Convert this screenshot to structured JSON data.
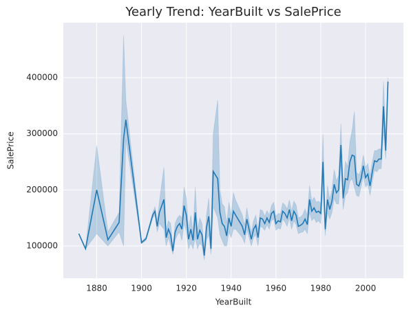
{
  "chart_data": {
    "type": "line",
    "title": "Yearly Trend: YearBuilt vs SalePrice",
    "x_label": "YearBuilt",
    "y_label": "SalePrice",
    "x": [
      1872,
      1875,
      1880,
      1885,
      1890,
      1892,
      1893,
      1900,
      1902,
      1905,
      1906,
      1907,
      1908,
      1910,
      1911,
      1912,
      1913,
      1914,
      1915,
      1916,
      1917,
      1918,
      1919,
      1920,
      1921,
      1922,
      1923,
      1924,
      1925,
      1926,
      1927,
      1928,
      1929,
      1930,
      1931,
      1932,
      1934,
      1935,
      1936,
      1937,
      1938,
      1939,
      1940,
      1941,
      1942,
      1945,
      1946,
      1947,
      1948,
      1949,
      1950,
      1951,
      1952,
      1953,
      1954,
      1955,
      1956,
      1957,
      1958,
      1959,
      1960,
      1961,
      1962,
      1963,
      1964,
      1965,
      1966,
      1967,
      1968,
      1969,
      1970,
      1971,
      1972,
      1973,
      1974,
      1975,
      1976,
      1977,
      1978,
      1979,
      1980,
      1981,
      1982,
      1983,
      1984,
      1985,
      1986,
      1987,
      1988,
      1989,
      1990,
      1991,
      1992,
      1993,
      1994,
      1995,
      1996,
      1997,
      1998,
      1999,
      2000,
      2001,
      2002,
      2003,
      2004,
      2005,
      2006,
      2007,
      2008,
      2009,
      2010
    ],
    "series": [
      {
        "color": "#1f77b4",
        "values": [
          122000,
          95000,
          200000,
          111000,
          142000,
          291000,
          325000,
          106000,
          113000,
          155000,
          162000,
          135000,
          160000,
          183000,
          115000,
          130000,
          120000,
          91000,
          125000,
          135000,
          140000,
          130000,
          172000,
          155000,
          112000,
          130000,
          110000,
          160000,
          112000,
          128000,
          120000,
          83000,
          133000,
          153000,
          95000,
          233000,
          220000,
          160000,
          140000,
          135000,
          118000,
          150000,
          135000,
          162000,
          155000,
          135000,
          120000,
          148000,
          130000,
          112000,
          130000,
          137000,
          115000,
          150000,
          148000,
          140000,
          150000,
          142000,
          158000,
          162000,
          140000,
          145000,
          143000,
          162000,
          158000,
          150000,
          165000,
          145000,
          162000,
          155000,
          135000,
          137000,
          140000,
          148000,
          138000,
          183000,
          162000,
          168000,
          160000,
          162000,
          158000,
          250000,
          130000,
          183000,
          165000,
          180000,
          210000,
          195000,
          200000,
          280000,
          185000,
          220000,
          218000,
          250000,
          262000,
          260000,
          210000,
          207000,
          220000,
          243000,
          222000,
          228000,
          207000,
          232000,
          252000,
          250000,
          255000,
          255000,
          349000,
          270000,
          393000
        ],
        "lower": [
          122000,
          95000,
          122000,
          100000,
          125000,
          100000,
          290000,
          104000,
          110000,
          150000,
          155000,
          125000,
          140000,
          130000,
          100000,
          115000,
          100000,
          85000,
          110000,
          120000,
          125000,
          110000,
          140000,
          125000,
          95000,
          105000,
          95000,
          115000,
          95000,
          105000,
          100000,
          75000,
          110000,
          120000,
          85000,
          170000,
          150000,
          120000,
          110000,
          100000,
          100000,
          125000,
          115000,
          130000,
          130000,
          115000,
          105000,
          130000,
          115000,
          100000,
          115000,
          120000,
          100000,
          135000,
          133000,
          128000,
          138000,
          130000,
          145000,
          148000,
          128000,
          132000,
          130000,
          148000,
          143000,
          135000,
          150000,
          130000,
          145000,
          138000,
          122000,
          124000,
          125000,
          130000,
          122000,
          160000,
          145000,
          150000,
          142000,
          145000,
          140000,
          200000,
          118000,
          160000,
          148000,
          160000,
          185000,
          175000,
          175000,
          245000,
          165000,
          190000,
          195000,
          215000,
          220000,
          205000,
          190000,
          188000,
          205000,
          225000,
          205000,
          210000,
          190000,
          215000,
          235000,
          232000,
          238000,
          238000,
          305000,
          255000,
          385000
        ],
        "upper": [
          122000,
          95000,
          279000,
          125000,
          160000,
          475000,
          360000,
          108000,
          116000,
          160000,
          170000,
          145000,
          180000,
          240000,
          130000,
          145000,
          140000,
          97000,
          140000,
          150000,
          155000,
          150000,
          205000,
          185000,
          130000,
          155000,
          125000,
          205000,
          130000,
          150000,
          140000,
          92000,
          155000,
          185000,
          110000,
          300000,
          360000,
          200000,
          175000,
          170000,
          140000,
          178000,
          155000,
          195000,
          182000,
          155000,
          137000,
          168000,
          145000,
          125000,
          145000,
          155000,
          130000,
          165000,
          163000,
          153000,
          163000,
          155000,
          172000,
          178000,
          153000,
          158000,
          157000,
          177000,
          173000,
          166000,
          182000,
          162000,
          180000,
          173000,
          150000,
          152000,
          156000,
          166000,
          155000,
          208000,
          180000,
          187000,
          178000,
          180000,
          176000,
          300000,
          143000,
          208000,
          183000,
          201000,
          236000,
          216000,
          226000,
          318000,
          206000,
          251000,
          242000,
          286000,
          306000,
          340000,
          231000,
          227000,
          236000,
          262000,
          240000,
          247000,
          225000,
          250000,
          270000,
          270000,
          273000,
          273000,
          393000,
          290000,
          400000
        ]
      }
    ],
    "xlim": [
      1865.1,
      2016.9
    ],
    "xticks": [
      1880,
      1900,
      1920,
      1940,
      1960,
      1980,
      2000
    ],
    "ylim": [
      42500,
      498000
    ],
    "yticks": [
      100000,
      200000,
      300000,
      400000
    ],
    "grid": true
  }
}
